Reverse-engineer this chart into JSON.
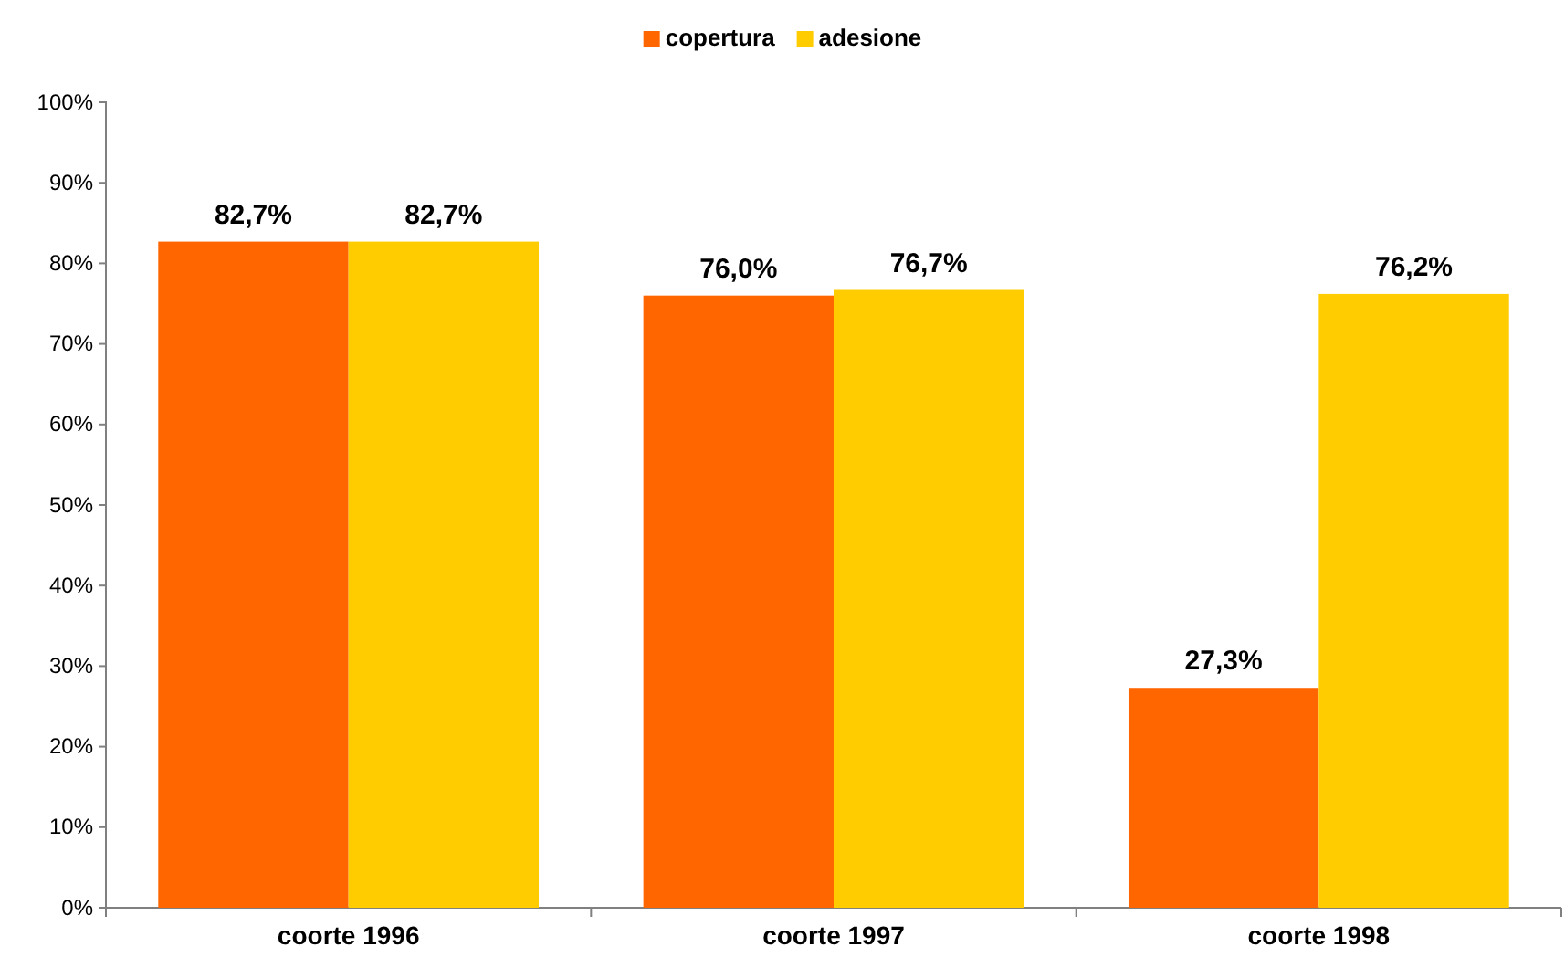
{
  "chart_data": {
    "type": "bar",
    "categories": [
      "coorte 1996",
      "coorte 1997",
      "coorte 1998"
    ],
    "series": [
      {
        "name": "copertura",
        "color": "#ff6600",
        "values": [
          82.7,
          76.0,
          27.3
        ],
        "value_labels": [
          "82,7%",
          "76,0%",
          "27,3%"
        ]
      },
      {
        "name": "adesione",
        "color": "#ffcc00",
        "values": [
          82.7,
          76.7,
          76.2
        ],
        "value_labels": [
          "82,7%",
          "76,7%",
          "76,2%"
        ]
      }
    ],
    "ylim": [
      0,
      100
    ],
    "yticks": [
      {
        "value": 0,
        "label": "0%"
      },
      {
        "value": 10,
        "label": "10%"
      },
      {
        "value": 20,
        "label": "20%"
      },
      {
        "value": 30,
        "label": "30%"
      },
      {
        "value": 40,
        "label": "40%"
      },
      {
        "value": 50,
        "label": "50%"
      },
      {
        "value": 60,
        "label": "60%"
      },
      {
        "value": 70,
        "label": "70%"
      },
      {
        "value": 80,
        "label": "80%"
      },
      {
        "value": 90,
        "label": "90%"
      },
      {
        "value": 100,
        "label": "100%"
      }
    ],
    "legend": "top",
    "grid": false
  }
}
